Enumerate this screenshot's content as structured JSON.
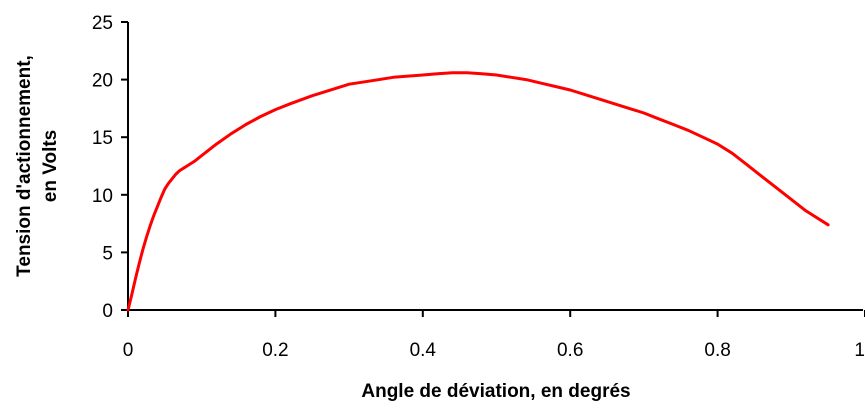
{
  "chart_data": {
    "type": "line",
    "title": "",
    "xlabel": "Angle de déviation, en degrés",
    "ylabel_lines": [
      "Tension d'actionnement,",
      "en Volts"
    ],
    "xlim": [
      0,
      1
    ],
    "ylim": [
      0,
      25
    ],
    "x_ticks": [
      0,
      0.2,
      0.4,
      0.6,
      0.8,
      1
    ],
    "x_tick_labels": [
      "0",
      "0.2",
      "0.4",
      "0.6",
      "0.8",
      "1"
    ],
    "y_ticks": [
      0,
      5,
      10,
      15,
      20,
      25
    ],
    "y_tick_labels": [
      "0",
      "5",
      "10",
      "15",
      "20",
      "25"
    ],
    "grid": false,
    "legend": "none",
    "series": [
      {
        "color": "#ff0000",
        "x": [
          0,
          0.005,
          0.01,
          0.015,
          0.02,
          0.025,
          0.03,
          0.035,
          0.04,
          0.045,
          0.05,
          0.055,
          0.06,
          0.065,
          0.07,
          0.075,
          0.08,
          0.09,
          0.1,
          0.12,
          0.14,
          0.16,
          0.18,
          0.2,
          0.22,
          0.25,
          0.28,
          0.3,
          0.33,
          0.36,
          0.38,
          0.4,
          0.42,
          0.44,
          0.46,
          0.48,
          0.5,
          0.52,
          0.54,
          0.56,
          0.58,
          0.6,
          0.62,
          0.64,
          0.66,
          0.68,
          0.7,
          0.72,
          0.74,
          0.76,
          0.78,
          0.8,
          0.82,
          0.84,
          0.86,
          0.88,
          0.9,
          0.92,
          0.95
        ],
        "y": [
          0,
          1.3,
          2.7,
          4.0,
          5.2,
          6.3,
          7.3,
          8.2,
          9.0,
          9.8,
          10.5,
          11.0,
          11.4,
          11.8,
          12.1,
          12.3,
          12.5,
          12.9,
          13.4,
          14.4,
          15.3,
          16.1,
          16.8,
          17.4,
          17.9,
          18.6,
          19.2,
          19.6,
          19.9,
          20.2,
          20.3,
          20.4,
          20.5,
          20.6,
          20.6,
          20.5,
          20.4,
          20.2,
          20.0,
          19.7,
          19.4,
          19.1,
          18.7,
          18.3,
          17.9,
          17.5,
          17.1,
          16.6,
          16.1,
          15.6,
          15.0,
          14.4,
          13.6,
          12.6,
          11.6,
          10.6,
          9.6,
          8.6,
          7.4
        ]
      }
    ]
  }
}
